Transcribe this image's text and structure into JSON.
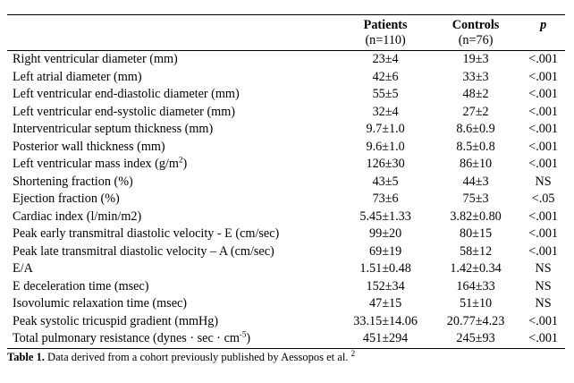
{
  "header": {
    "patients_label": "Patients",
    "patients_n": "(n=110)",
    "controls_label": "Controls",
    "controls_n": "(n=76)",
    "p_label": "p"
  },
  "rows": [
    {
      "label": "Right ventricular diameter (mm)",
      "patients": "23±4",
      "controls": "19±3",
      "p": "<.001"
    },
    {
      "label": "Left atrial diameter (mm)",
      "patients": "42±6",
      "controls": "33±3",
      "p": "<.001"
    },
    {
      "label": "Left ventricular end-diastolic diameter (mm)",
      "patients": "55±5",
      "controls": "48±2",
      "p": "<.001"
    },
    {
      "label": "Left ventricular end-systolic diameter (mm)",
      "patients": "32±4",
      "controls": "27±2",
      "p": "<.001"
    },
    {
      "label": "Interventricular septum thickness (mm)",
      "patients": "9.7±1.0",
      "controls": "8.6±0.9",
      "p": "<.001"
    },
    {
      "label": "Posterior wall thickness (mm)",
      "patients": "9.6±1.0",
      "controls": "8.5±0.8",
      "p": "<.001"
    },
    {
      "label": "Left ventricular mass index (g/m",
      "label_sup": "2",
      "label_tail": ")",
      "patients": "126±30",
      "controls": "86±10",
      "p": "<.001"
    },
    {
      "label": "Shortening fraction (%)",
      "patients": "43±5",
      "controls": "44±3",
      "p": "NS"
    },
    {
      "label": "Ejection fraction (%)",
      "patients": "73±6",
      "controls": "75±3",
      "p": "<.05"
    },
    {
      "label": "Cardiac index (l/min/m2)",
      "patients": "5.45±1.33",
      "controls": "3.82±0.80",
      "p": "<.001"
    },
    {
      "label": "Peak early transmitral diastolic velocity - E (cm/sec)",
      "patients": "99±20",
      "controls": "80±15",
      "p": "<.001"
    },
    {
      "label": "Peak late transmitral  diastolic velocity – A (cm/sec)",
      "patients": "69±19",
      "controls": "58±12",
      "p": "<.001"
    },
    {
      "label": "E/A",
      "patients": "1.51±0.48",
      "controls": "1.42±0.34",
      "p": "NS"
    },
    {
      "label": "E deceleration time (msec)",
      "patients": "152±34",
      "controls": "164±33",
      "p": "NS"
    },
    {
      "label": "Isovolumic relaxation time (msec)",
      "patients": "47±15",
      "controls": "51±10",
      "p": "NS"
    },
    {
      "label": "Peak systolic tricuspid gradient (mmHg)",
      "patients": "33.15±14.06",
      "controls": "20.77±4.23",
      "p": "<.001"
    },
    {
      "label": "Total pulmonary resistance (dynes · sec · cm",
      "label_sup": "-5",
      "label_tail": ")",
      "patients": "451±294",
      "controls": "245±93",
      "p": "<.001"
    }
  ],
  "caption": {
    "prefix": "Table 1.",
    "text": " Data derived from a cohort previously published by Aessopos et al. ",
    "sup": "2"
  }
}
